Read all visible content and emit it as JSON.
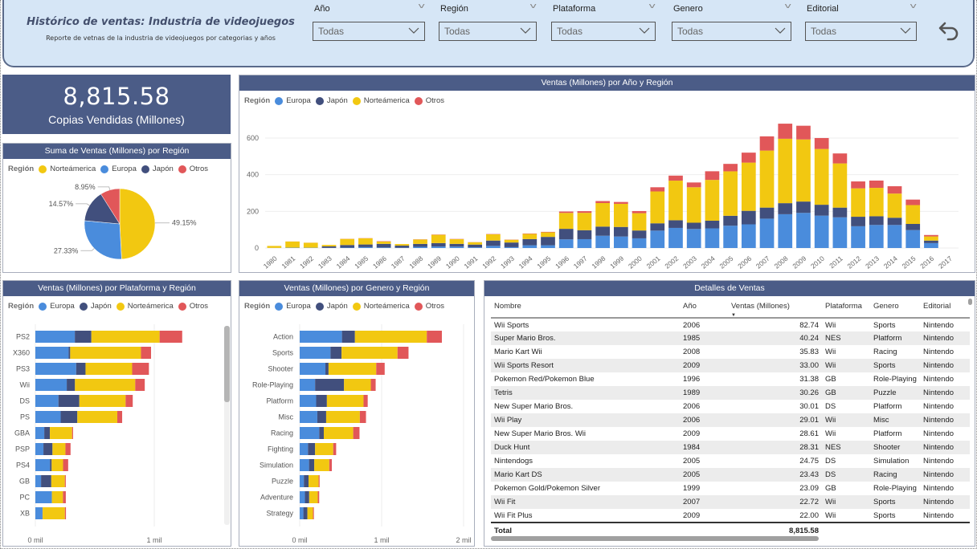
{
  "header": {
    "title": "Histórico de ventas: Industria de videojuegos",
    "subtitle": "Reporte de vetnas de la industria de videojuegos por categorias y años",
    "slicers": [
      {
        "label": "Año",
        "value": "Todas"
      },
      {
        "label": "Región",
        "value": "Todas"
      },
      {
        "label": "Plataforma",
        "value": "Todas"
      },
      {
        "label": "Genero",
        "value": "Todas"
      },
      {
        "label": "Editorial",
        "value": "Todas"
      }
    ],
    "undo_icon": "undo-arrow-icon"
  },
  "colors": {
    "Europa": "#4a8cdc",
    "Japón": "#414f7d",
    "Norteámerica": "#f2c811",
    "Otros": "#e15759",
    "panel_header": "#4b5c87",
    "header_bg": "#d6e6f6"
  },
  "kpi": {
    "value": "8,815.58",
    "label": "Copias Vendidas (Millones)"
  },
  "legend_title": "Región",
  "chart_data": [
    {
      "type": "pie",
      "title": "Suma de Ventas (Millones) por Región",
      "legend": [
        "Norteámerica",
        "Europa",
        "Japón",
        "Otros"
      ],
      "slices": [
        {
          "label": "Norteámerica",
          "value": 49.15,
          "text": "49.15%"
        },
        {
          "label": "Europa",
          "value": 27.33,
          "text": "27.33%"
        },
        {
          "label": "Japón",
          "value": 14.57,
          "text": "14.57%"
        },
        {
          "label": "Otros",
          "value": 8.95,
          "text": "8.95%"
        }
      ]
    },
    {
      "type": "bar",
      "stacked": true,
      "title": "Ventas (Millones) por Año y Región",
      "legend": [
        "Europa",
        "Japón",
        "Norteámerica",
        "Otros"
      ],
      "xlabel": "",
      "ylabel": "",
      "ylim": [
        0,
        700
      ],
      "yticks": [
        0,
        200,
        400,
        600
      ],
      "grid": true,
      "categories": [
        "1980",
        "1981",
        "1982",
        "1983",
        "1984",
        "1985",
        "1986",
        "1987",
        "1988",
        "1989",
        "1990",
        "1991",
        "1992",
        "1993",
        "1994",
        "1995",
        "1996",
        "1997",
        "1998",
        "1999",
        "2000",
        "2001",
        "2002",
        "2003",
        "2004",
        "2005",
        "2006",
        "2007",
        "2008",
        "2009",
        "2010",
        "2011",
        "2012",
        "2013",
        "2014",
        "2015",
        "2016",
        "2017"
      ],
      "series": [
        {
          "name": "Europa",
          "values": [
            0.7,
            2.0,
            1.7,
            0.8,
            2.1,
            4.7,
            2.8,
            1.4,
            6.6,
            8.4,
            7.6,
            3.9,
            11.7,
            4.7,
            14.9,
            14.9,
            47.3,
            48.3,
            66.9,
            62.7,
            52.8,
            94.9,
            109.7,
            103.8,
            107.3,
            121.6,
            129.2,
            160.2,
            184.4,
            191.6,
            176.6,
            167.4,
            118.8,
            125.8,
            125.7,
            97.7,
            26.8,
            0.0
          ]
        },
        {
          "name": "Japón",
          "values": [
            0.0,
            0.0,
            0.0,
            8.1,
            14.3,
            14.6,
            19.8,
            11.6,
            15.8,
            18.4,
            14.9,
            14.8,
            28.9,
            25.3,
            33.9,
            45.8,
            57.4,
            48.9,
            50.0,
            52.3,
            42.8,
            39.9,
            41.8,
            34.2,
            41.7,
            54.3,
            73.7,
            60.3,
            60.3,
            61.9,
            59.5,
            53.0,
            51.8,
            47.6,
            39.5,
            33.7,
            13.7,
            0.0
          ]
        },
        {
          "name": "Norteámerica",
          "values": [
            10.6,
            33.4,
            26.9,
            7.8,
            33.3,
            33.7,
            12.5,
            8.5,
            23.9,
            45.2,
            25.5,
            12.8,
            33.9,
            15.1,
            28.2,
            24.8,
            86.8,
            94.8,
            128.4,
            126.1,
            94.5,
            173.9,
            216.2,
            193.6,
            222.6,
            242.6,
            263.1,
            311.2,
            351.4,
            338.9,
            304.2,
            241.2,
            154.9,
            154.8,
            131.9,
            102.8,
            22.7,
            0.0
          ]
        },
        {
          "name": "Otros",
          "values": [
            0.1,
            0.3,
            0.3,
            0.1,
            0.7,
            0.9,
            1.9,
            0.2,
            1.0,
            1.5,
            1.4,
            0.7,
            1.7,
            1.0,
            2.2,
            2.6,
            7.7,
            9.1,
            11.0,
            10.1,
            11.6,
            22.8,
            27.3,
            26.0,
            47.2,
            40.6,
            54.4,
            77.6,
            82.4,
            74.8,
            59.9,
            54.4,
            37.8,
            39.8,
            40.0,
            30.0,
            7.8,
            0.05
          ]
        }
      ]
    },
    {
      "type": "bar",
      "orientation": "horizontal",
      "stacked": true,
      "title": "Ventas (Millones) por Plataforma y Región",
      "legend": [
        "Europa",
        "Japón",
        "Norteámerica",
        "Otros"
      ],
      "xlim": [
        0,
        1400
      ],
      "xticks": [
        {
          "value": 0,
          "label": "0 mil"
        },
        {
          "value": 1000,
          "label": "1 mil"
        }
      ],
      "categories": [
        "PS2",
        "X360",
        "PS3",
        "Wii",
        "DS",
        "PS",
        "GBA",
        "PSP",
        "PS4",
        "GB",
        "PC",
        "XB"
      ],
      "series": [
        {
          "name": "Europa",
          "values": [
            332,
            280,
            343,
            264,
            194,
            213,
            75,
            68,
            123,
            48,
            139,
            60
          ]
        },
        {
          "name": "Japón",
          "values": [
            139,
            13,
            79,
            69,
            176,
            140,
            47,
            76,
            14,
            86,
            0.2,
            1.4
          ]
        },
        {
          "name": "Norteámerica",
          "values": [
            574,
            595,
            392,
            507,
            389,
            336,
            187,
            109,
            96,
            114,
            93,
            187
          ]
        },
        {
          "name": "Otros",
          "values": [
            190,
            85,
            141,
            80,
            60,
            41,
            8,
            43,
            43,
            8,
            24,
            9
          ]
        }
      ]
    },
    {
      "type": "bar",
      "orientation": "horizontal",
      "stacked": true,
      "title": "Ventas (Millones) por Genero y Región",
      "legend": [
        "Europa",
        "Japón",
        "Norteámerica",
        "Otros"
      ],
      "xlim": [
        0,
        2000
      ],
      "xticks": [
        {
          "value": 0,
          "label": "0 mil"
        },
        {
          "value": 1000,
          "label": "1 mil"
        },
        {
          "value": 2000,
          "label": "2 mil"
        }
      ],
      "categories": [
        "Action",
        "Sports",
        "Shooter",
        "Role-Playing",
        "Platform",
        "Misc",
        "Racing",
        "Fighting",
        "Simulation",
        "Puzzle",
        "Adventure",
        "Strategy"
      ],
      "series": [
        {
          "name": "Europa",
          "values": [
            516,
            376,
            314,
            188,
            201,
            215,
            238,
            101,
            114,
            51,
            64,
            45
          ]
        },
        {
          "name": "Japón",
          "values": [
            158,
            135,
            38,
            353,
            131,
            108,
            56,
            87,
            64,
            57,
            52,
            49
          ]
        },
        {
          "name": "Norteámerica",
          "values": [
            877,
            683,
            582,
            327,
            447,
            411,
            359,
            221,
            183,
            123,
            105,
            68
          ]
        },
        {
          "name": "Otros",
          "values": [
            184,
            134,
            103,
            59,
            51,
            75,
            77,
            36,
            31,
            12,
            17,
            11
          ]
        }
      ]
    }
  ],
  "table": {
    "title": "Detalles de Ventas",
    "columns": [
      "Nombre",
      "Año",
      "Ventas (Millones)",
      "Plataforma",
      "Genero",
      "Editorial"
    ],
    "rows": [
      [
        "Wii Sports",
        "2006",
        "82.74",
        "Wii",
        "Sports",
        "Nintendo"
      ],
      [
        "Super Mario Bros.",
        "1985",
        "40.24",
        "NES",
        "Platform",
        "Nintendo"
      ],
      [
        "Mario Kart Wii",
        "2008",
        "35.83",
        "Wii",
        "Racing",
        "Nintendo"
      ],
      [
        "Wii Sports Resort",
        "2009",
        "33.00",
        "Wii",
        "Sports",
        "Nintendo"
      ],
      [
        "Pokemon Red/Pokemon Blue",
        "1996",
        "31.38",
        "GB",
        "Role-Playing",
        "Nintendo"
      ],
      [
        "Tetris",
        "1989",
        "30.26",
        "GB",
        "Puzzle",
        "Nintendo"
      ],
      [
        "New Super Mario Bros.",
        "2006",
        "30.01",
        "DS",
        "Platform",
        "Nintendo"
      ],
      [
        "Wii Play",
        "2006",
        "29.01",
        "Wii",
        "Misc",
        "Nintendo"
      ],
      [
        "New Super Mario Bros. Wii",
        "2009",
        "28.61",
        "Wii",
        "Platform",
        "Nintendo"
      ],
      [
        "Duck Hunt",
        "1984",
        "28.31",
        "NES",
        "Shooter",
        "Nintendo"
      ],
      [
        "Nintendogs",
        "2005",
        "24.75",
        "DS",
        "Simulation",
        "Nintendo"
      ],
      [
        "Mario Kart DS",
        "2005",
        "23.43",
        "DS",
        "Racing",
        "Nintendo"
      ],
      [
        "Pokemon Gold/Pokemon Silver",
        "1999",
        "23.09",
        "GB",
        "Role-Playing",
        "Nintendo"
      ],
      [
        "Wii Fit",
        "2007",
        "22.72",
        "Wii",
        "Sports",
        "Nintendo"
      ],
      [
        "Wii Fit Plus",
        "2009",
        "22.00",
        "Wii",
        "Sports",
        "Nintendo"
      ]
    ],
    "total_label": "Total",
    "total_value": "8,815.58",
    "sort_indicator": "sort-descending-icon"
  }
}
